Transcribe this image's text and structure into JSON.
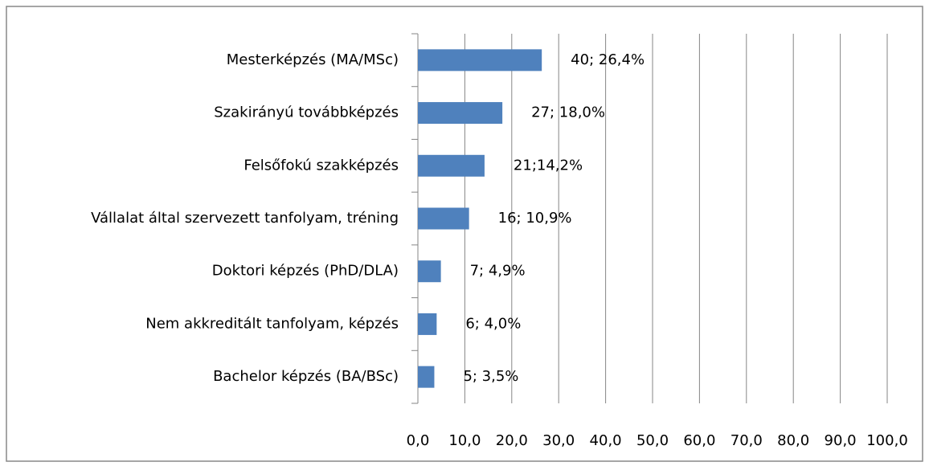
{
  "chart_data": {
    "type": "bar",
    "orientation": "horizontal",
    "categories": [
      "Mesterképzés (MA/MSc)",
      "Szakirányú továbbképzés",
      "Felsőfokú szakképzés",
      "Vállalat által szervezett tanfolyam, tréning",
      "Doktori képzés (PhD/DLA)",
      "Nem akkreditált tanfolyam, képzés",
      "Bachelor képzés (BA/BSc)"
    ],
    "values": [
      26.4,
      18.0,
      14.2,
      10.9,
      4.9,
      4.0,
      3.5
    ],
    "value_labels": [
      "40; 26,4%",
      "27; 18,0%",
      "21;14,2%",
      "16; 10,9%",
      "7; 4,9%",
      "6; 4,0%",
      "5; 3,5%"
    ],
    "color": "#4f81bd",
    "xlim": [
      0,
      100
    ],
    "xticks": [
      {
        "value": 0,
        "label": "0,0"
      },
      {
        "value": 10,
        "label": "10,0"
      },
      {
        "value": 20,
        "label": "20,0"
      },
      {
        "value": 30,
        "label": "30,0"
      },
      {
        "value": 40,
        "label": "40,0"
      },
      {
        "value": 50,
        "label": "50,0"
      },
      {
        "value": 60,
        "label": "60,0"
      },
      {
        "value": 70,
        "label": "70,0"
      },
      {
        "value": 80,
        "label": "80,0"
      },
      {
        "value": 90,
        "label": "90,0"
      },
      {
        "value": 100,
        "label": "100,0"
      }
    ],
    "grid": true
  }
}
